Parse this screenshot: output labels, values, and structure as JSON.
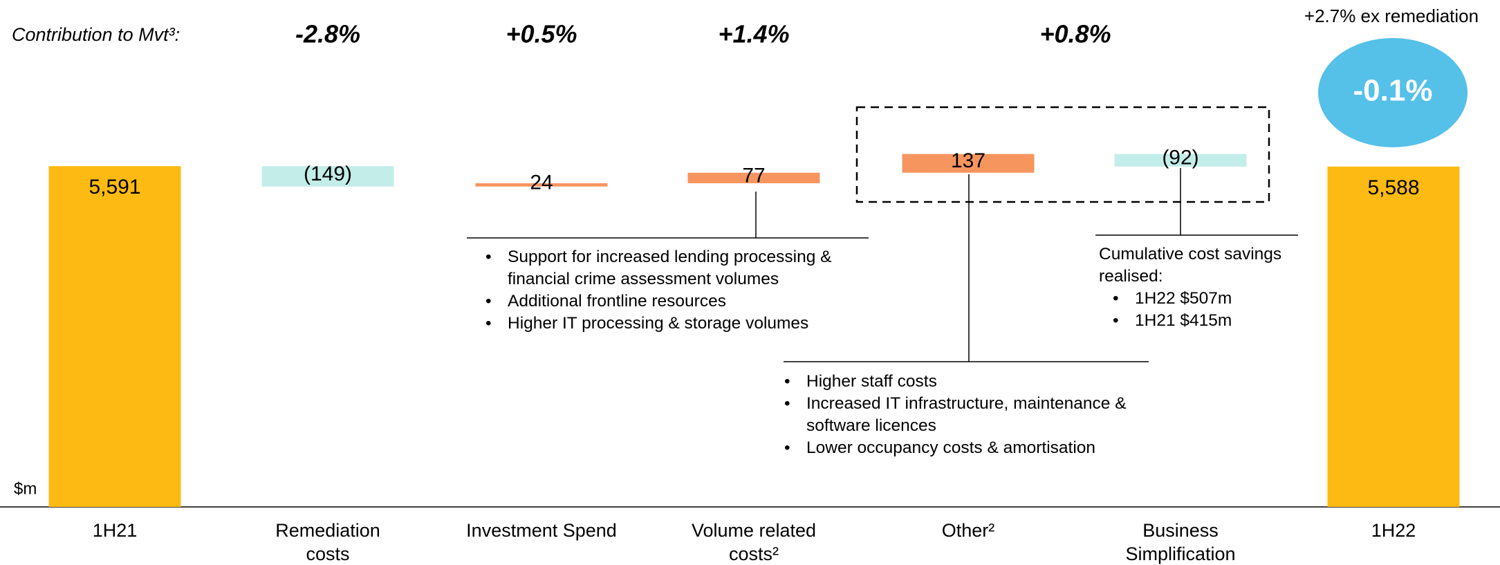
{
  "chart_data": {
    "type": "waterfall",
    "heading": "Contribution to Mvt³:",
    "unit_label": "$m",
    "categories": [
      "1H21",
      "Remediation costs",
      "Investment Spend",
      "Volume related costs²",
      "Other²",
      "Business Simplification",
      "1H22"
    ],
    "values": [
      5591,
      -149,
      24,
      77,
      137,
      -92,
      5588
    ],
    "value_labels": [
      "5,591",
      "(149)",
      "24",
      "77",
      "137",
      "(92)",
      "5,588"
    ],
    "totals": [
      true,
      false,
      false,
      false,
      false,
      false,
      true
    ],
    "colors": [
      "#FDBA12",
      "#C3EDE9",
      "#F7955F",
      "#F7955F",
      "#F7955F",
      "#C3EDE9",
      "#FDBA12"
    ],
    "ylim": [
      3100,
      6300
    ],
    "contributions": [
      {
        "value": -2.8,
        "label": "-2.8%"
      },
      {
        "value": 0.5,
        "label": "+0.5%"
      },
      {
        "value": 1.4,
        "label": "+1.4%"
      },
      {
        "value": 0.8,
        "label": "+0.8%"
      }
    ],
    "total_change": {
      "value": -0.1,
      "label": "-0.1%",
      "color": "#55C0E8",
      "note": "+2.7% ex remediation"
    },
    "callouts": [
      {
        "items": [
          "Support for increased lending processing & financial crime assessment volumes",
          "Additional frontline resources",
          "Higher IT processing & storage volumes"
        ]
      },
      {
        "items": [
          "Higher staff costs",
          "Increased IT infrastructure, maintenance & software licences",
          "Lower occupancy costs & amortisation"
        ]
      },
      {
        "text": "Cumulative cost savings realised:",
        "items": [
          "1H22 $507m",
          "1H21 $415m"
        ]
      }
    ]
  }
}
